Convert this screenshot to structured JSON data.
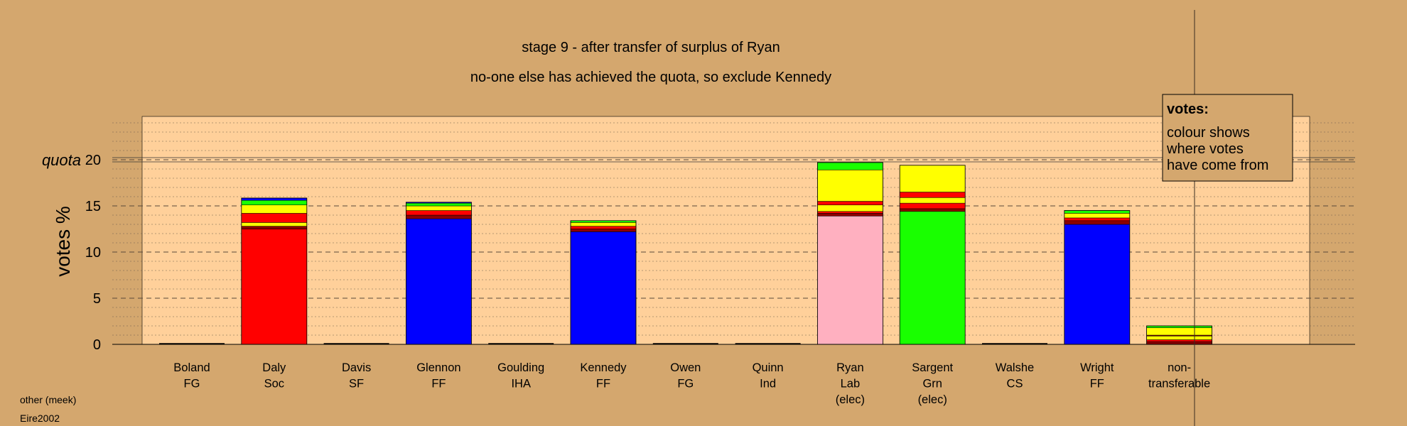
{
  "chart_data": {
    "type": "bar",
    "stacked": true,
    "title": "stage 9 - after transfer of surplus of Ryan",
    "subtitle": "no-one else has achieved the quota, so exclude Kennedy",
    "ylabel": "votes %",
    "ylim": [
      0,
      25
    ],
    "yticks": [
      "0",
      "5",
      "10",
      "15",
      "20"
    ],
    "quota": 20,
    "quota_label": "quota",
    "grid": true,
    "legend_position": "top-right",
    "legend": {
      "title": "votes:",
      "lines": [
        "colour shows",
        "where votes",
        "have come from"
      ]
    },
    "categories": [
      {
        "lines": [
          "Boland",
          "FG"
        ],
        "segments": []
      },
      {
        "lines": [
          "Daly",
          "Soc"
        ],
        "segments": [
          {
            "color": "#ff0000",
            "value": 12.5
          },
          {
            "color": "#8b0000",
            "value": 0.3
          },
          {
            "color": "#ffff00",
            "value": 0.4
          },
          {
            "color": "#ff0000",
            "value": 1.0
          },
          {
            "color": "#ffff00",
            "value": 0.9
          },
          {
            "color": "#19ff00",
            "value": 0.5
          },
          {
            "color": "#0000ff",
            "value": 0.25
          }
        ]
      },
      {
        "lines": [
          "Davis",
          "SF"
        ],
        "segments": []
      },
      {
        "lines": [
          "Glennon",
          "FF"
        ],
        "segments": [
          {
            "color": "#0000ff",
            "value": 13.6
          },
          {
            "color": "#8b0000",
            "value": 0.4
          },
          {
            "color": "#ff0000",
            "value": 0.5
          },
          {
            "color": "#ffff00",
            "value": 0.5
          },
          {
            "color": "#19ff00",
            "value": 0.3
          },
          {
            "color": "#0000ff",
            "value": 0.1
          }
        ]
      },
      {
        "lines": [
          "Goulding",
          "IHA"
        ],
        "segments": []
      },
      {
        "lines": [
          "Kennedy",
          "FF"
        ],
        "segments": [
          {
            "color": "#0000ff",
            "value": 12.2
          },
          {
            "color": "#8b0000",
            "value": 0.3
          },
          {
            "color": "#ff0000",
            "value": 0.3
          },
          {
            "color": "#ffff00",
            "value": 0.4
          },
          {
            "color": "#19ff00",
            "value": 0.2
          }
        ]
      },
      {
        "lines": [
          "Owen",
          "FG"
        ],
        "segments": []
      },
      {
        "lines": [
          "Quinn",
          "Ind"
        ],
        "segments": []
      },
      {
        "lines": [
          "Ryan",
          "Lab",
          "(elec)"
        ],
        "segments": [
          {
            "color": "#ffb0c0",
            "value": 13.9
          },
          {
            "color": "#8b0000",
            "value": 0.3
          },
          {
            "color": "#ff0000",
            "value": 0.2
          },
          {
            "color": "#ffff00",
            "value": 0.7
          },
          {
            "color": "#ff0000",
            "value": 0.4
          },
          {
            "color": "#ffff00",
            "value": 3.4
          },
          {
            "color": "#19ff00",
            "value": 0.8
          }
        ]
      },
      {
        "lines": [
          "Sargent",
          "Grn",
          "(elec)"
        ],
        "segments": [
          {
            "color": "#19ff00",
            "value": 14.4
          },
          {
            "color": "#8b0000",
            "value": 0.3
          },
          {
            "color": "#ff0000",
            "value": 0.6
          },
          {
            "color": "#ffff00",
            "value": 0.6
          },
          {
            "color": "#ff0000",
            "value": 0.6
          },
          {
            "color": "#ffff00",
            "value": 2.9
          }
        ]
      },
      {
        "lines": [
          "Walshe",
          "CS"
        ],
        "segments": []
      },
      {
        "lines": [
          "Wright",
          "FF"
        ],
        "segments": [
          {
            "color": "#0000ff",
            "value": 13.0
          },
          {
            "color": "#8b0000",
            "value": 0.4
          },
          {
            "color": "#ff0000",
            "value": 0.3
          },
          {
            "color": "#ffff00",
            "value": 0.5
          },
          {
            "color": "#19ff00",
            "value": 0.3
          }
        ]
      },
      {
        "lines": [
          "non-",
          "transferable"
        ],
        "separate": true,
        "segments": [
          {
            "color": "#8b0000",
            "value": 0.3
          },
          {
            "color": "#ff0000",
            "value": 0.2
          },
          {
            "color": "#ffff00",
            "value": 0.4
          },
          {
            "color": "#8b0000",
            "value": 0.1
          },
          {
            "color": "#ffff00",
            "value": 0.8
          },
          {
            "color": "#19ff00",
            "value": 0.2
          }
        ]
      }
    ]
  },
  "footer": {
    "method": "other (meek)",
    "election": "Eire2002"
  },
  "colors": {
    "background": "#d4a76e",
    "plot_background": "#ffd09a"
  }
}
